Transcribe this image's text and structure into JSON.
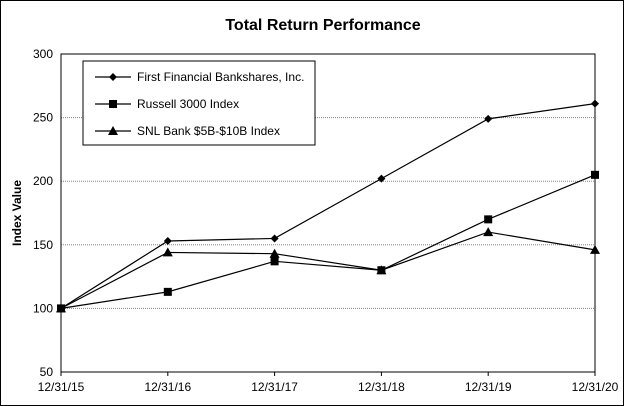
{
  "chart_data": {
    "type": "line",
    "title": "Total Return Performance",
    "xlabel": "",
    "ylabel": "Index Value",
    "categories": [
      "12/31/15",
      "12/31/16",
      "12/31/17",
      "12/31/18",
      "12/31/19",
      "12/31/20"
    ],
    "ylim": [
      50,
      300
    ],
    "yticks": [
      50,
      100,
      150,
      200,
      250,
      300
    ],
    "grid": true,
    "legend_position": "top-left",
    "series": [
      {
        "name": "First Financial Bankshares, Inc.",
        "marker": "diamond",
        "color": "#000000",
        "values": [
          100,
          153,
          155,
          202,
          249,
          261
        ]
      },
      {
        "name": "Russell 3000 Index",
        "marker": "square",
        "color": "#000000",
        "values": [
          100,
          113,
          137,
          130,
          170,
          205
        ]
      },
      {
        "name": "SNL Bank $5B-$10B Index",
        "marker": "triangle",
        "color": "#000000",
        "values": [
          100,
          144,
          143,
          130,
          160,
          146
        ]
      }
    ]
  }
}
